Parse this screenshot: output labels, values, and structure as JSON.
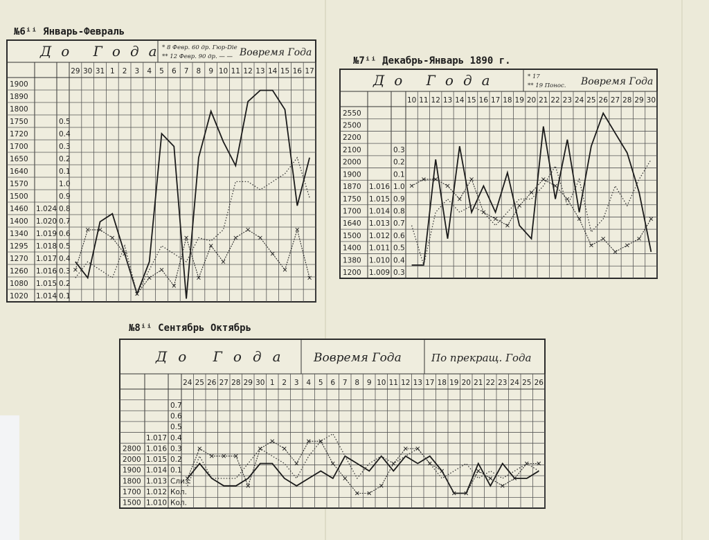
{
  "chart_data": [
    {
      "type": "line",
      "title": "№6ⁱⁱ Январь-Февраль",
      "header_left": "До Года",
      "header_note1": "* 8 Февр. 60 др. Гюр-Die",
      "header_note2": "** 12 Февр. 90 др. — —",
      "header_right": "Вовремя Года",
      "x": [
        "29",
        "30",
        "31",
        "1",
        "2",
        "3",
        "4",
        "5",
        "6",
        "7",
        "8",
        "9",
        "10",
        "11",
        "12",
        "13",
        "14",
        "15",
        "16",
        "17"
      ],
      "left_labels": [
        "1900",
        "1890",
        "1800",
        "1750",
        "1720",
        "1700",
        "1650",
        "1640",
        "1570",
        "1500",
        "1460",
        "1400",
        "1340",
        "1295",
        "1270",
        "1260",
        "1080",
        "1020"
      ],
      "mid_labels": [
        "",
        "",
        "",
        "",
        "",
        "",
        "",
        "",
        "",
        "",
        "1.024",
        "1.020",
        "1.019",
        "1.018",
        "1.017",
        "1.016",
        "1.015",
        "1.014"
      ],
      "right_labels": [
        "",
        "",
        "",
        "0.5",
        "0.4",
        "0.3",
        "0.2",
        "0.1",
        "1.0",
        "0.9",
        "0.8",
        "0.7",
        "0.6",
        "0.5",
        "0.4",
        "0.3",
        "0.2",
        "0.1"
      ],
      "series": [
        {
          "style": "solid",
          "values": [
            0.25,
            0.15,
            0.5,
            0.55,
            0.3,
            0.05,
            0.25,
            1.05,
            0.97,
            0.02,
            0.9,
            1.19,
            1.0,
            0.85,
            1.25,
            1.32,
            1.32,
            1.2,
            0.6,
            0.9
          ]
        },
        {
          "style": "dotted",
          "values": [
            0.15,
            0.25,
            0.2,
            0.15,
            0.35,
            0.05,
            0.2,
            0.35,
            0.3,
            0.25,
            0.4,
            0.38,
            0.45,
            0.75,
            0.75,
            0.7,
            0.75,
            0.8,
            0.9,
            0.65
          ]
        },
        {
          "style": "cross",
          "values": [
            0.2,
            0.45,
            0.45,
            0.4,
            0.3,
            0.05,
            0.15,
            0.2,
            0.1,
            0.4,
            0.15,
            0.35,
            0.25,
            0.4,
            0.45,
            0.4,
            0.3,
            0.2,
            0.45,
            0.15
          ]
        }
      ]
    },
    {
      "type": "line",
      "title": "№7ⁱⁱ Декабрь-Январь 1890 г.",
      "header_left": "До Года",
      "header_note1": "* 17",
      "header_note2": "** 19 Понос.",
      "header_right": "Вовремя Года",
      "x": [
        "10",
        "11",
        "12",
        "13",
        "14",
        "15",
        "16",
        "17",
        "18",
        "19",
        "20",
        "21",
        "22",
        "23",
        "24",
        "25",
        "26",
        "27",
        "28",
        "29",
        "30"
      ],
      "left_labels": [
        "2550",
        "2500",
        "2200",
        "2100",
        "2000",
        "1900",
        "1870",
        "1750",
        "1700",
        "1640",
        "1500",
        "1400",
        "1380",
        "1200"
      ],
      "mid_labels": [
        "",
        "",
        "",
        "",
        "",
        "",
        "1.016",
        "1.015",
        "1.014",
        "1.013",
        "1.012",
        "1.011",
        "1.010",
        "1.009"
      ],
      "right_labels": [
        "",
        "",
        "",
        "0.3",
        "0.2",
        "0.1",
        "1.0",
        "0.9",
        "0.8",
        "0.7",
        "0.6",
        "0.5",
        "0.4",
        "0.3"
      ],
      "series": [
        {
          "style": "solid",
          "values": [
            0.1,
            0.1,
            0.9,
            0.3,
            1.0,
            0.5,
            0.7,
            0.5,
            0.8,
            0.4,
            0.3,
            1.15,
            0.6,
            1.05,
            0.5,
            1.0,
            1.25,
            1.1,
            0.95,
            0.65,
            0.2
          ]
        },
        {
          "style": "dotted",
          "values": [
            0.4,
            0.1,
            0.5,
            0.6,
            0.5,
            0.55,
            0.5,
            0.4,
            0.5,
            0.6,
            0.6,
            0.7,
            0.85,
            0.55,
            0.75,
            0.35,
            0.45,
            0.7,
            0.55,
            0.75,
            0.9
          ]
        },
        {
          "style": "cross",
          "values": [
            0.7,
            0.75,
            0.75,
            0.7,
            0.6,
            0.75,
            0.5,
            0.45,
            0.4,
            0.55,
            0.65,
            0.75,
            0.7,
            0.6,
            0.45,
            0.25,
            0.3,
            0.2,
            0.25,
            0.3,
            0.45
          ]
        }
      ]
    },
    {
      "type": "line",
      "title": "№8ⁱⁱ Сентябрь Октябрь",
      "header_left": "До Года",
      "header_mid": "Вовремя Года",
      "header_right": "По прекращ. Года",
      "x": [
        "24",
        "25",
        "26",
        "27",
        "28",
        "29",
        "30",
        "1",
        "2",
        "3",
        "4",
        "5",
        "6",
        "7",
        "8",
        "9",
        "10",
        "11",
        "12",
        "13",
        "17",
        "18",
        "19",
        "20",
        "21",
        "22",
        "23",
        "24",
        "25",
        "26"
      ],
      "left_labels": [
        "",
        "",
        "",
        "",
        "",
        "2800",
        "2000",
        "1900",
        "1800",
        "1700",
        "1500"
      ],
      "mid_labels": [
        "",
        "",
        "",
        "",
        "1.017",
        "1.016",
        "1.015",
        "1.014",
        "1.013",
        "1.012",
        "1.010"
      ],
      "right_labels": [
        "",
        "0.7",
        "0.6",
        "0.5",
        "0.4",
        "0.3",
        "0.2",
        "0.1",
        "Слиз.",
        "Кол.",
        "Кол."
      ],
      "series": [
        {
          "style": "solid",
          "values": [
            0.2,
            0.3,
            0.2,
            0.15,
            0.15,
            0.2,
            0.3,
            0.3,
            0.2,
            0.15,
            0.2,
            0.25,
            0.2,
            0.35,
            0.3,
            0.25,
            0.35,
            0.25,
            0.35,
            0.3,
            0.35,
            0.25,
            0.1,
            0.1,
            0.3,
            0.15,
            0.3,
            0.2,
            0.2,
            0.25
          ]
        },
        {
          "style": "dotted",
          "values": [
            0.15,
            0.35,
            0.2,
            0.2,
            0.2,
            0.3,
            0.4,
            0.35,
            0.3,
            0.2,
            0.35,
            0.45,
            0.5,
            0.35,
            0.2,
            0.3,
            0.35,
            0.3,
            0.35,
            0.4,
            0.3,
            0.2,
            0.25,
            0.3,
            0.2,
            0.25,
            0.2,
            0.25,
            0.3,
            0.25
          ]
        },
        {
          "style": "cross",
          "values": [
            0.2,
            0.4,
            0.35,
            0.35,
            0.35,
            0.15,
            0.4,
            0.45,
            0.4,
            0.3,
            0.45,
            0.45,
            0.3,
            0.2,
            0.1,
            0.1,
            0.15,
            0.3,
            0.4,
            0.4,
            0.3,
            0.25,
            0.1,
            0.1,
            0.25,
            0.2,
            0.15,
            0.2,
            0.3,
            0.3
          ]
        }
      ]
    }
  ]
}
